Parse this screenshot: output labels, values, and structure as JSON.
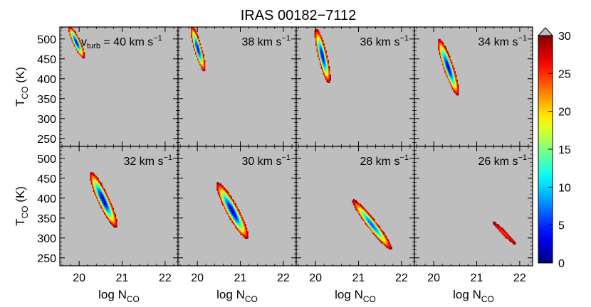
{
  "figure": {
    "title": "IRAS 00182−7112"
  },
  "chart_data": {
    "type": "heatmap",
    "title": "IRAS 00182−7112",
    "xlabel": "log N",
    "xlabel_sub": "CO",
    "ylabel_main": "T",
    "ylabel_sub": "CO",
    "ylabel_unit": " (K)",
    "xlim": [
      19.55,
      22.3
    ],
    "ylim": [
      230,
      530
    ],
    "xticks": [
      20,
      21,
      22
    ],
    "xtick_labels": [
      "20",
      "21",
      "22"
    ],
    "yticks": [
      250,
      300,
      350,
      400,
      450,
      500
    ],
    "ytick_labels": [
      "250",
      "300",
      "350",
      "400",
      "450",
      "500"
    ],
    "colorbar": {
      "range": [
        0,
        30
      ],
      "ticks": [
        0,
        5,
        10,
        15,
        20,
        25,
        30
      ],
      "tick_labels": [
        "0",
        "5",
        "10",
        "15",
        "20",
        "25",
        "30"
      ],
      "colormap": "jet",
      "extend": "max"
    },
    "background_color": "#bebebe",
    "grid": false,
    "first_panel_prefix": "v",
    "first_panel_prefix_sub": "turb",
    "first_panel_prefix_eq": " = ",
    "unit_text": " km s",
    "unit_sup": "−1",
    "panels": [
      {
        "vturb": "40",
        "x1": 19.75,
        "y1": 532,
        "x2": 20.1,
        "y2": 450,
        "width": 0.085,
        "minval": 2.5,
        "maxval": 30
      },
      {
        "vturb": "38",
        "x1": 19.85,
        "y1": 532,
        "x2": 20.15,
        "y2": 418,
        "width": 0.085,
        "minval": 2.0,
        "maxval": 30
      },
      {
        "vturb": "36",
        "x1": 20.0,
        "y1": 525,
        "x2": 20.3,
        "y2": 388,
        "width": 0.1,
        "minval": 1.5,
        "maxval": 30
      },
      {
        "vturb": "34",
        "x1": 20.1,
        "y1": 500,
        "x2": 20.55,
        "y2": 357,
        "width": 0.11,
        "minval": 1.0,
        "maxval": 30
      },
      {
        "vturb": "32",
        "x1": 20.25,
        "y1": 465,
        "x2": 20.85,
        "y2": 325,
        "width": 0.13,
        "minval": 0.3,
        "maxval": 30
      },
      {
        "vturb": "30",
        "x1": 20.45,
        "y1": 438,
        "x2": 21.15,
        "y2": 297,
        "width": 0.14,
        "minval": 0.3,
        "maxval": 30
      },
      {
        "vturb": "28",
        "x1": 20.85,
        "y1": 395,
        "x2": 21.75,
        "y2": 270,
        "width": 0.11,
        "minval": 5.0,
        "maxval": 30
      },
      {
        "vturb": "26",
        "x1": 21.35,
        "y1": 340,
        "x2": 21.9,
        "y2": 282,
        "width": 0.05,
        "minval": 24,
        "maxval": 30
      }
    ]
  }
}
